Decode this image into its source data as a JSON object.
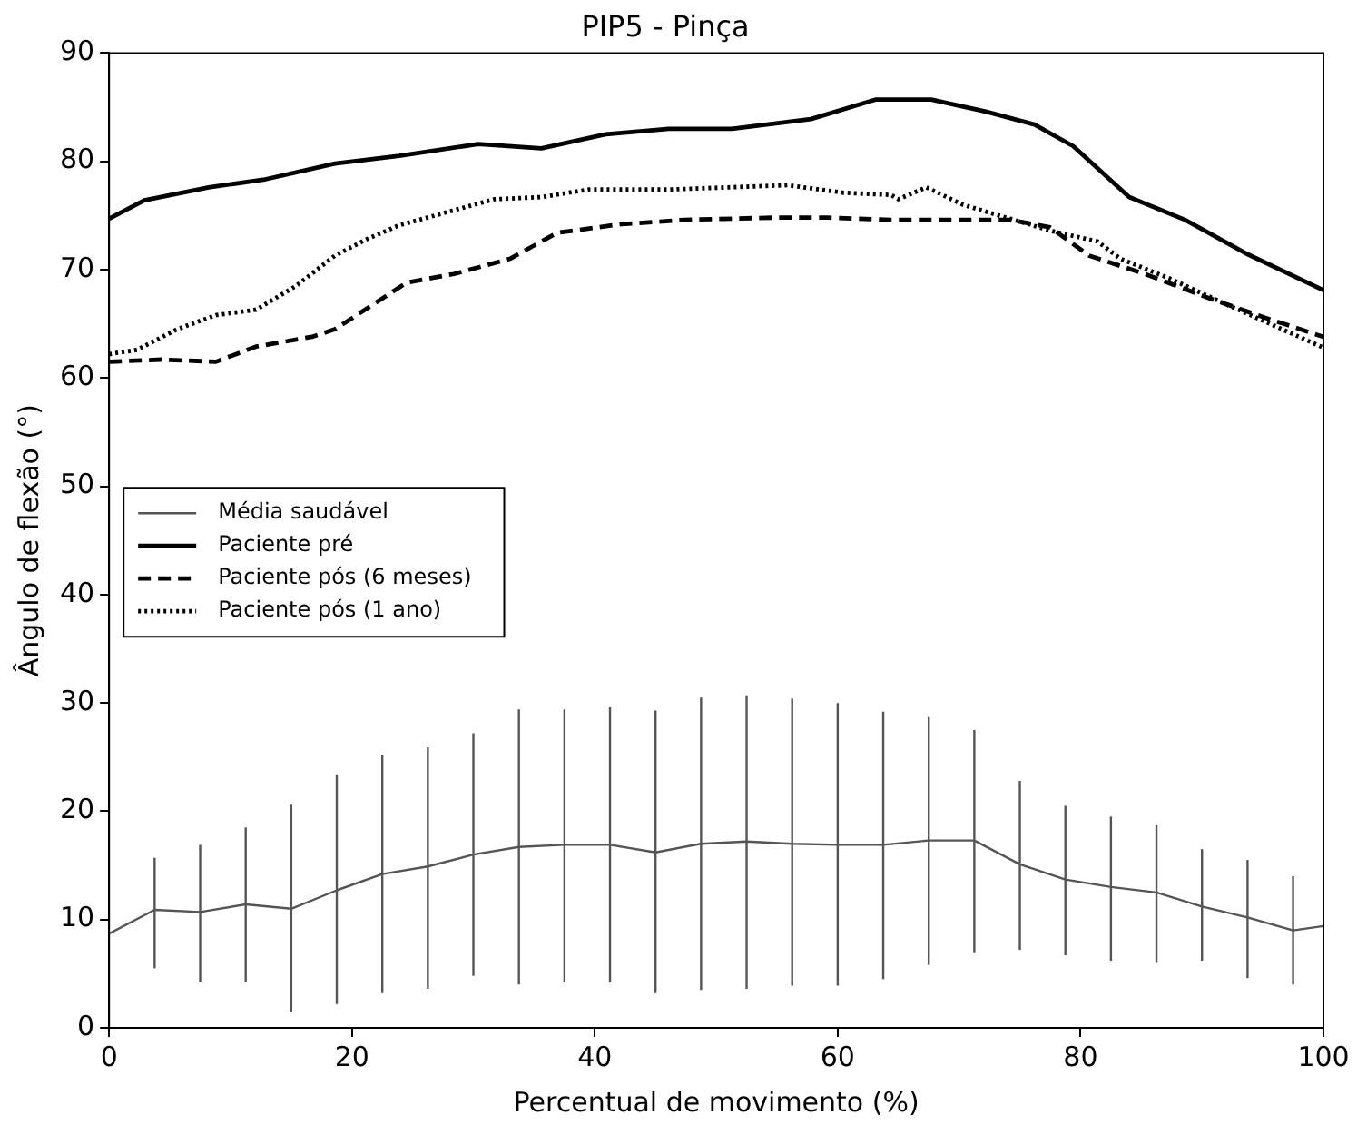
{
  "chart_data": {
    "type": "line",
    "title": "PIP5 - Pinça",
    "xlabel": "Percentual de movimento (%)",
    "ylabel": "Ângulo de flexão (°)",
    "xlim": [
      0,
      100
    ],
    "xticks": [
      0,
      20,
      40,
      60,
      80,
      100
    ],
    "ylim": [
      0,
      90
    ],
    "yticks": [
      0,
      10,
      20,
      30,
      40,
      50,
      60,
      70,
      80,
      90
    ],
    "grid": false,
    "legend": "left",
    "marker": "none",
    "series": [
      {
        "name": "Média saudável",
        "color": "#555555",
        "line_style": "solid",
        "x": [
          0,
          3.75,
          7.5,
          11.25,
          15,
          18.75,
          22.5,
          26.25,
          30,
          33.75,
          37.5,
          41.25,
          45,
          48.75,
          52.5,
          56.25,
          60,
          63.75,
          67.5,
          71.25,
          75,
          78.75,
          82.5,
          86.25,
          90,
          93.75,
          97.5,
          100
        ],
        "values": [
          8.7,
          10.9,
          10.7,
          11.4,
          11.0,
          12.7,
          14.2,
          14.9,
          16.0,
          16.7,
          16.9,
          16.9,
          16.2,
          17.0,
          17.2,
          17.0,
          16.9,
          16.9,
          17.3,
          17.3,
          15.1,
          13.7,
          13.0,
          12.5,
          11.2,
          10.2,
          9.0,
          9.4
        ],
        "errors": [
          null,
          [
            5.5,
            15.7
          ],
          [
            4.2,
            16.9
          ],
          [
            4.2,
            18.5
          ],
          [
            1.5,
            20.6
          ],
          [
            2.2,
            23.4
          ],
          [
            3.2,
            25.2
          ],
          [
            3.6,
            25.9
          ],
          [
            4.8,
            27.2
          ],
          [
            4.0,
            29.4
          ],
          [
            4.2,
            29.4
          ],
          [
            4.2,
            29.6
          ],
          [
            3.2,
            29.3
          ],
          [
            3.5,
            30.5
          ],
          [
            3.6,
            30.7
          ],
          [
            3.9,
            30.4
          ],
          [
            3.9,
            30.0
          ],
          [
            4.5,
            29.2
          ],
          [
            5.8,
            28.7
          ],
          [
            6.9,
            27.5
          ],
          [
            7.2,
            22.8
          ],
          [
            6.7,
            20.5
          ],
          [
            6.2,
            19.5
          ],
          [
            6.0,
            18.7
          ],
          [
            6.2,
            16.5
          ],
          [
            4.6,
            15.5
          ],
          [
            4.0,
            14.0
          ],
          null
        ]
      },
      {
        "name": "Paciente pré",
        "color": "#000000",
        "line_style": "solid",
        "x": [
          0,
          2.9,
          8.2,
          12.7,
          18.6,
          23.9,
          30.4,
          35.6,
          40.9,
          46.1,
          51.3,
          57.8,
          63.1,
          67.7,
          72.2,
          76.2,
          79.4,
          84.0,
          88.6,
          93.8,
          100
        ],
        "values": [
          74.7,
          76.4,
          77.6,
          78.3,
          79.8,
          80.5,
          81.6,
          81.2,
          82.5,
          83.0,
          83.0,
          83.9,
          85.7,
          85.7,
          84.6,
          83.4,
          81.4,
          76.7,
          74.6,
          71.4,
          68.1
        ]
      },
      {
        "name": "Paciente pós (6 meses)",
        "color": "#000000",
        "line_style": "dashed",
        "x": [
          0,
          4.3,
          8.8,
          12.1,
          16.7,
          18.6,
          24.5,
          28.4,
          33.0,
          36.9,
          42.2,
          47.4,
          54.6,
          59.2,
          64.4,
          74.2,
          77.5,
          80.7,
          85.3,
          90.5,
          95.1,
          100
        ],
        "values": [
          61.5,
          61.7,
          61.5,
          62.9,
          63.8,
          64.5,
          68.8,
          69.6,
          71.0,
          73.4,
          74.2,
          74.6,
          74.8,
          74.8,
          74.6,
          74.6,
          73.9,
          71.3,
          69.6,
          67.4,
          65.6,
          63.8
        ]
      },
      {
        "name": "Paciente pós (1 ano)",
        "color": "#000000",
        "line_style": "dotted",
        "x": [
          0,
          2.3,
          5.6,
          8.8,
          12.1,
          15.4,
          18.6,
          21.2,
          23.9,
          27.8,
          31.7,
          35.6,
          39.5,
          46.1,
          55.9,
          60.5,
          64.4,
          65.0,
          67.3,
          70.3,
          74.2,
          77.5,
          81.4,
          83.3,
          87.3,
          91.8,
          95.8,
          100
        ],
        "values": [
          62.2,
          62.6,
          64.5,
          65.8,
          66.3,
          68.5,
          71.3,
          72.8,
          74.1,
          75.3,
          76.5,
          76.7,
          77.4,
          77.4,
          77.8,
          77.1,
          76.9,
          76.5,
          77.6,
          76.0,
          74.7,
          73.6,
          72.6,
          71.0,
          69.2,
          66.9,
          64.9,
          62.8
        ]
      }
    ]
  }
}
